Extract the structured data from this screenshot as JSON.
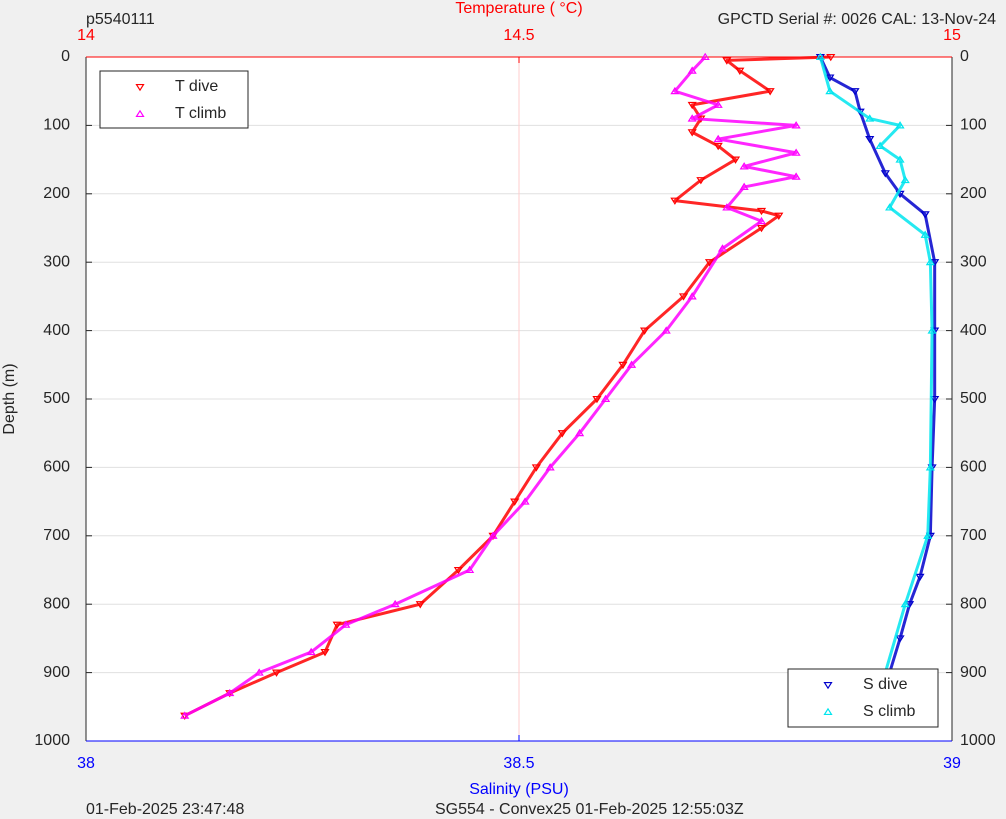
{
  "chart_data": {
    "type": "scatter",
    "top_left_label": "p5540111",
    "top_right_label": "GPCTD Serial #: 0026 CAL: 13-Nov-24",
    "footer_left": "01-Feb-2025 23:47:48",
    "footer_right": "SG554 - Convex25 01-Feb-2025 12:55:03Z",
    "x_label": "Salinity (PSU)",
    "x2_label": "Temperature (   °C)",
    "y_label": "Depth (m)",
    "xlim": [
      38,
      39
    ],
    "xticks": [
      38,
      38.5,
      39
    ],
    "x2lim": [
      14,
      15
    ],
    "x2ticks": [
      14,
      14.5,
      15
    ],
    "ylim": [
      0,
      1000
    ],
    "yticks": [
      0,
      100,
      200,
      300,
      400,
      500,
      600,
      700,
      800,
      900,
      1000
    ],
    "y_reversed": true,
    "grid": true,
    "series": [
      {
        "name": "T dive",
        "color": "#ff0000",
        "axis": "x2",
        "marker": "down",
        "legend": "upper-left",
        "x": [
          14.86,
          14.74,
          14.755,
          14.79,
          14.7,
          14.71,
          14.7,
          14.73,
          14.75,
          14.71,
          14.68,
          14.78,
          14.8,
          14.78,
          14.72,
          14.69,
          14.645,
          14.62,
          14.59,
          14.55,
          14.52,
          14.495,
          14.47,
          14.43,
          14.386,
          14.29,
          14.276,
          14.22,
          14.166,
          14.114
        ],
        "y": [
          0,
          5,
          20,
          50,
          70,
          90,
          110,
          130,
          150,
          180,
          210,
          225,
          232,
          250,
          300,
          350,
          400,
          450,
          500,
          550,
          600,
          650,
          700,
          750,
          800,
          830,
          870,
          900,
          930,
          963
        ]
      },
      {
        "name": "T climb",
        "color": "#ff00ff",
        "axis": "x2",
        "marker": "up",
        "legend": "upper-left",
        "x": [
          14.715,
          14.7,
          14.68,
          14.73,
          14.7,
          14.82,
          14.73,
          14.82,
          14.76,
          14.82,
          14.76,
          14.74,
          14.78,
          14.735,
          14.7,
          14.67,
          14.63,
          14.6,
          14.57,
          14.536,
          14.507,
          14.47,
          14.443,
          14.357,
          14.3,
          14.26,
          14.2,
          14.166,
          14.114
        ],
        "y": [
          0,
          20,
          50,
          70,
          90,
          100,
          120,
          140,
          160,
          175,
          190,
          220,
          240,
          280,
          350,
          400,
          450,
          500,
          550,
          600,
          650,
          700,
          750,
          800,
          830,
          870,
          900,
          930,
          963
        ]
      },
      {
        "name": "S dive",
        "color": "#0000cc",
        "axis": "x",
        "marker": "down",
        "legend": "lower-right",
        "x": [
          38.848,
          38.859,
          38.888,
          38.894,
          38.905,
          38.923,
          38.94,
          38.969,
          38.98,
          38.98,
          38.98,
          38.977,
          38.975,
          38.963,
          38.951,
          38.94,
          38.928,
          38.915
        ],
        "y": [
          0,
          30,
          50,
          80,
          120,
          170,
          200,
          230,
          300,
          400,
          500,
          600,
          700,
          760,
          800,
          850,
          900,
          963
        ]
      },
      {
        "name": "S climb",
        "color": "#00e5ee",
        "axis": "x",
        "marker": "up",
        "legend": "lower-right",
        "x": [
          38.848,
          38.859,
          38.905,
          38.94,
          38.917,
          38.94,
          38.946,
          38.928,
          38.969,
          38.975,
          38.977,
          38.975,
          38.972,
          38.946,
          38.923,
          38.911
        ],
        "y": [
          0,
          50,
          90,
          100,
          130,
          150,
          180,
          220,
          260,
          300,
          400,
          600,
          700,
          800,
          900,
          963
        ]
      }
    ]
  }
}
